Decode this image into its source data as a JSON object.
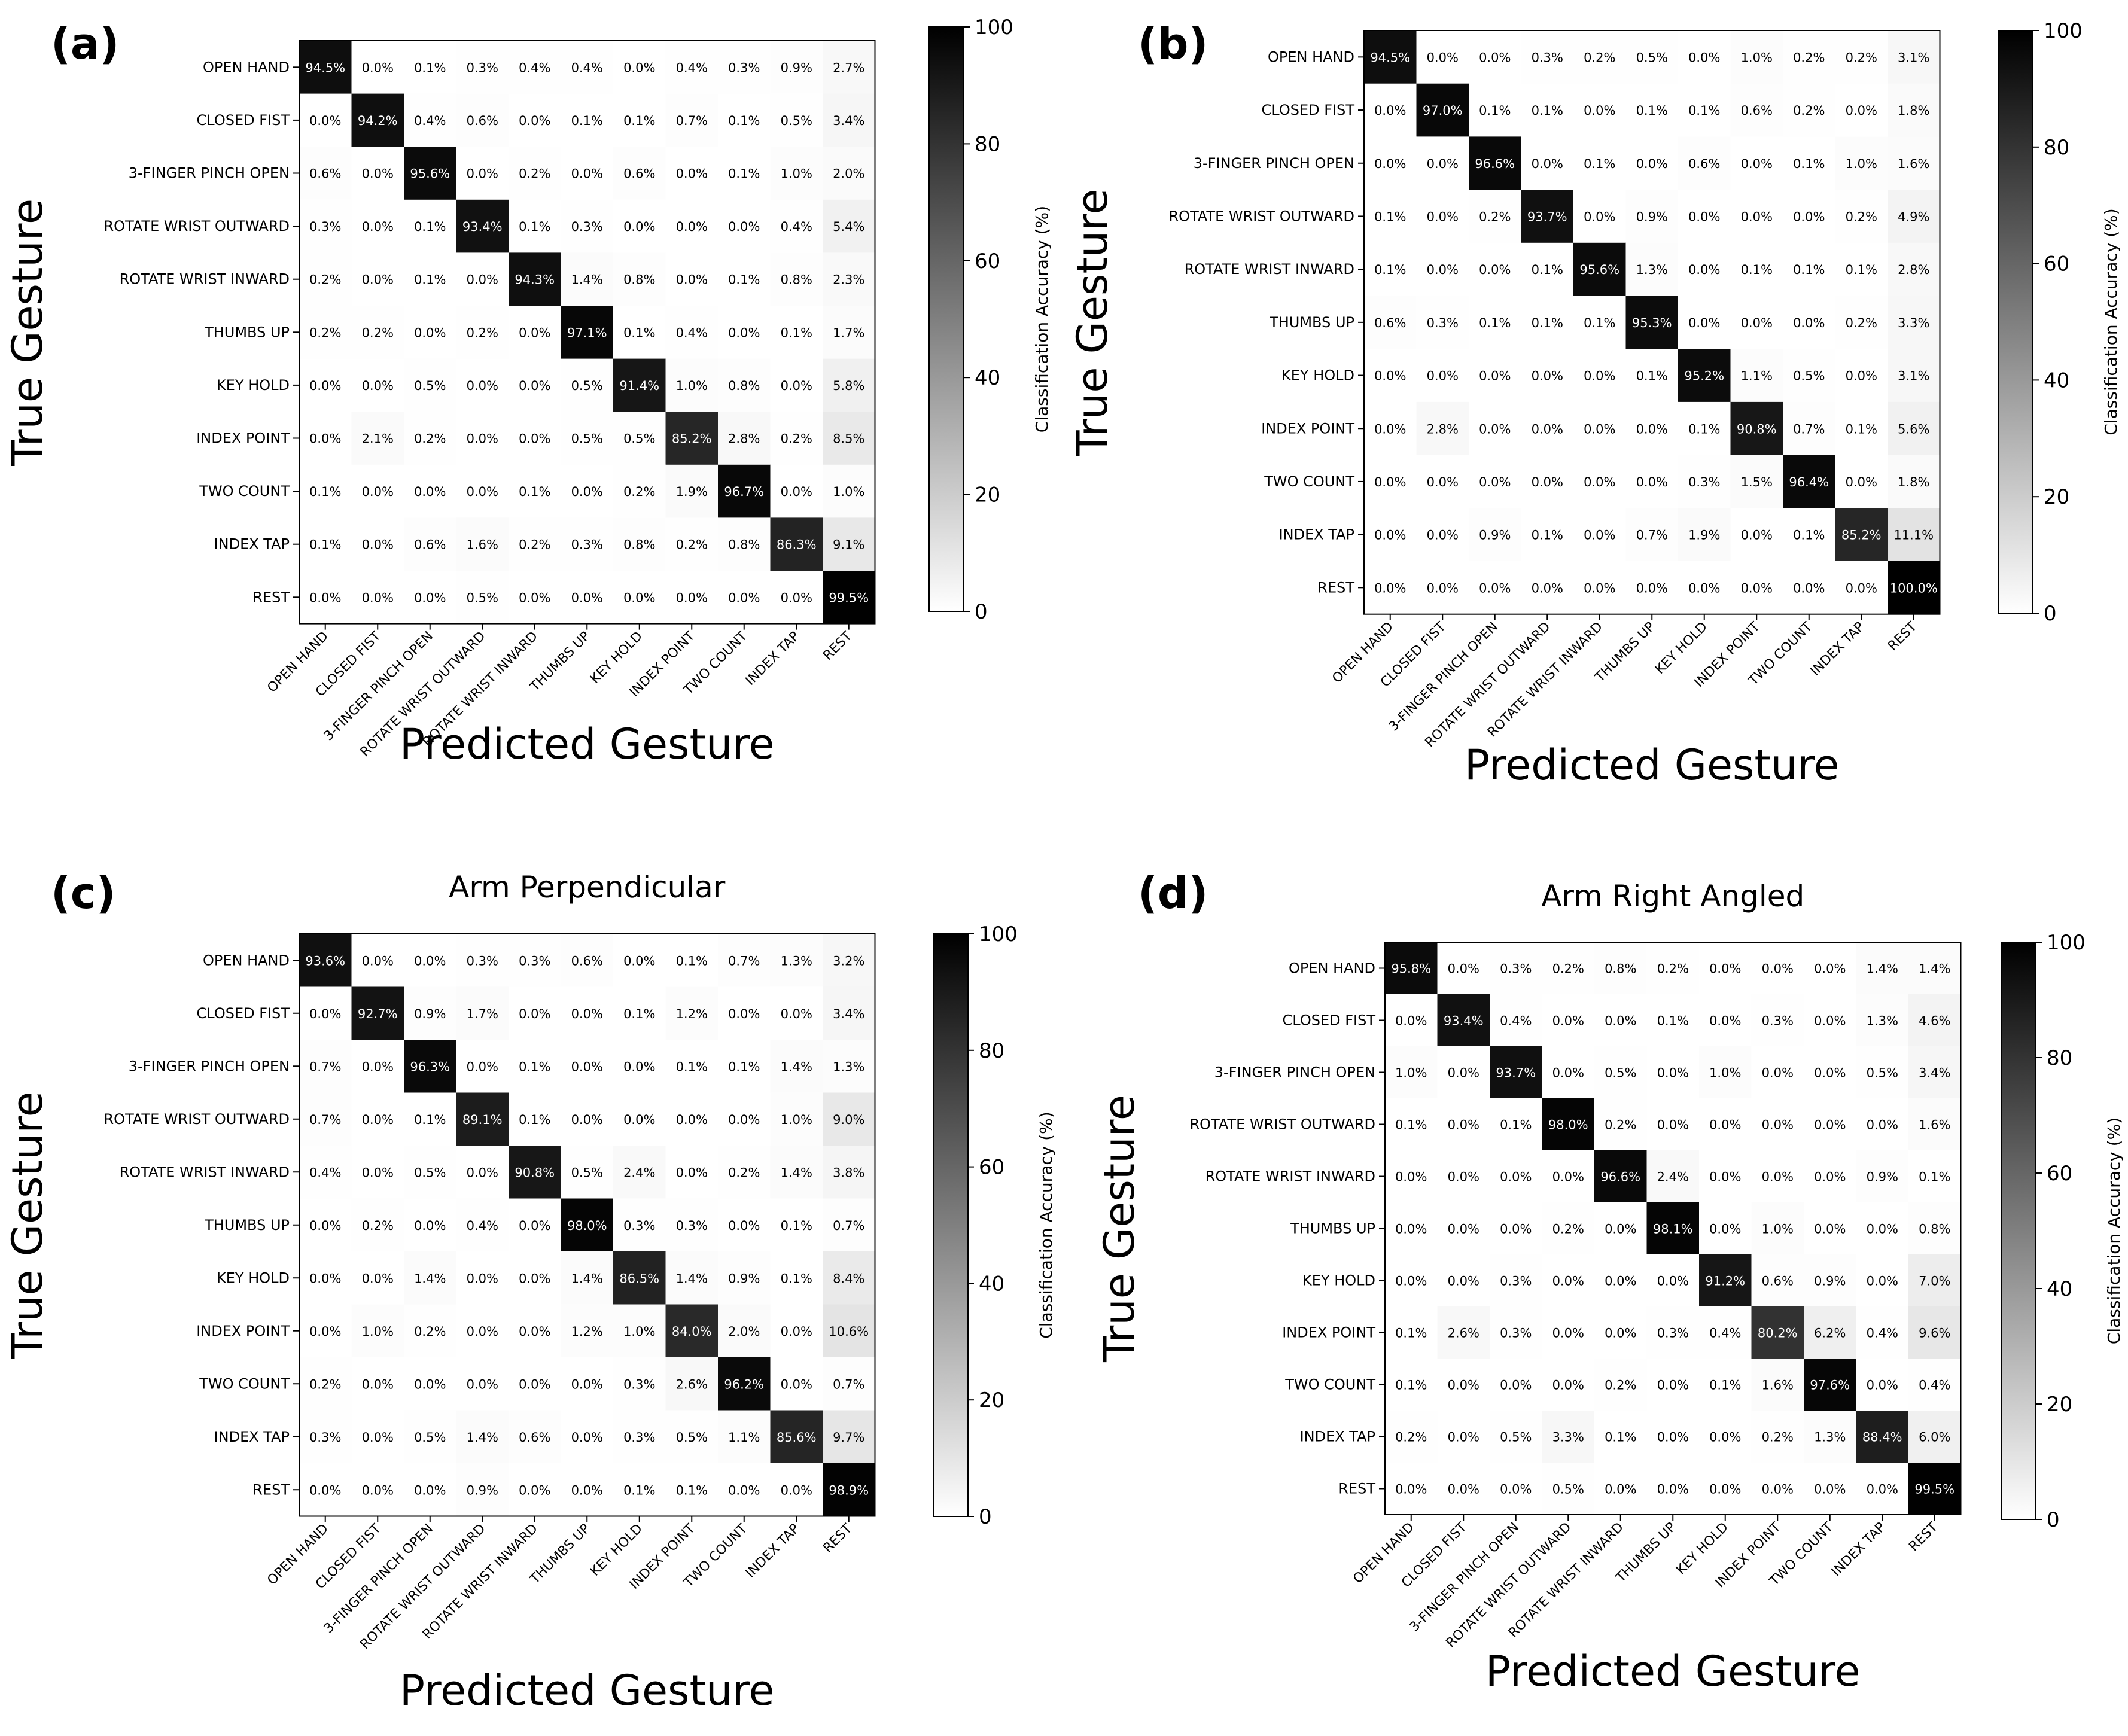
{
  "figure": {
    "shared": {
      "categories": [
        "OPEN HAND",
        "CLOSED FIST",
        "3-FINGER PINCH OPEN",
        "ROTATE WRIST OUTWARD",
        "ROTATE WRIST INWARD",
        "THUMBS UP",
        "KEY HOLD",
        "INDEX POINT",
        "TWO COUNT",
        "INDEX TAP",
        "REST"
      ],
      "xlabel": "Predicted Gesture",
      "ylabel": "True Gesture",
      "colorbar_label": "Classification Accuracy (%)",
      "colorbar_ticks": [
        "0",
        "20",
        "40",
        "60",
        "80",
        "100"
      ],
      "colormap": {
        "low": "#ffffff",
        "high": "#000000"
      }
    }
  },
  "chart_data": [
    {
      "type": "heatmap",
      "panel_label": "(a)",
      "title": "",
      "xlabel": "Predicted Gesture",
      "ylabel": "True Gesture",
      "zlabel": "Classification Accuracy (%)",
      "zlim": [
        0,
        100
      ],
      "categories": [
        "OPEN HAND",
        "CLOSED FIST",
        "3-FINGER PINCH OPEN",
        "ROTATE WRIST OUTWARD",
        "ROTATE WRIST INWARD",
        "THUMBS UP",
        "KEY HOLD",
        "INDEX POINT",
        "TWO COUNT",
        "INDEX TAP",
        "REST"
      ],
      "values": [
        [
          94.5,
          0.0,
          0.1,
          0.3,
          0.4,
          0.4,
          0.0,
          0.4,
          0.3,
          0.9,
          2.7
        ],
        [
          0.0,
          94.2,
          0.4,
          0.6,
          0.0,
          0.1,
          0.1,
          0.7,
          0.1,
          0.5,
          3.4
        ],
        [
          0.6,
          0.0,
          95.6,
          0.0,
          0.2,
          0.0,
          0.6,
          0.0,
          0.1,
          1.0,
          2.0
        ],
        [
          0.3,
          0.0,
          0.1,
          93.4,
          0.1,
          0.3,
          0.0,
          0.0,
          0.0,
          0.4,
          5.4
        ],
        [
          0.2,
          0.0,
          0.1,
          0.0,
          94.3,
          1.4,
          0.8,
          0.0,
          0.1,
          0.8,
          2.3
        ],
        [
          0.2,
          0.2,
          0.0,
          0.2,
          0.0,
          97.1,
          0.1,
          0.4,
          0.0,
          0.1,
          1.7
        ],
        [
          0.0,
          0.0,
          0.5,
          0.0,
          0.0,
          0.5,
          91.4,
          1.0,
          0.8,
          0.0,
          5.8
        ],
        [
          0.0,
          2.1,
          0.2,
          0.0,
          0.0,
          0.5,
          0.5,
          85.2,
          2.8,
          0.2,
          8.5
        ],
        [
          0.1,
          0.0,
          0.0,
          0.0,
          0.1,
          0.0,
          0.2,
          1.9,
          96.7,
          0.0,
          1.0
        ],
        [
          0.1,
          0.0,
          0.6,
          1.6,
          0.2,
          0.3,
          0.8,
          0.2,
          0.8,
          86.3,
          9.1
        ],
        [
          0.0,
          0.0,
          0.0,
          0.5,
          0.0,
          0.0,
          0.0,
          0.0,
          0.0,
          0.0,
          99.5
        ]
      ]
    },
    {
      "type": "heatmap",
      "panel_label": "(b)",
      "title": "",
      "xlabel": "Predicted Gesture",
      "ylabel": "True Gesture",
      "zlabel": "Classification Accuracy (%)",
      "zlim": [
        0,
        100
      ],
      "categories": [
        "OPEN HAND",
        "CLOSED FIST",
        "3-FINGER PINCH OPEN",
        "ROTATE WRIST OUTWARD",
        "ROTATE WRIST INWARD",
        "THUMBS UP",
        "KEY HOLD",
        "INDEX POINT",
        "TWO COUNT",
        "INDEX TAP",
        "REST"
      ],
      "values": [
        [
          94.5,
          0.0,
          0.0,
          0.3,
          0.2,
          0.5,
          0.0,
          1.0,
          0.2,
          0.2,
          3.1
        ],
        [
          0.0,
          97.0,
          0.1,
          0.1,
          0.0,
          0.1,
          0.1,
          0.6,
          0.2,
          0.0,
          1.8
        ],
        [
          0.0,
          0.0,
          96.6,
          0.0,
          0.1,
          0.0,
          0.6,
          0.0,
          0.1,
          1.0,
          1.6
        ],
        [
          0.1,
          0.0,
          0.2,
          93.7,
          0.0,
          0.9,
          0.0,
          0.0,
          0.0,
          0.2,
          4.9
        ],
        [
          0.1,
          0.0,
          0.0,
          0.1,
          95.6,
          1.3,
          0.0,
          0.1,
          0.1,
          0.1,
          2.8
        ],
        [
          0.6,
          0.3,
          0.1,
          0.1,
          0.1,
          95.3,
          0.0,
          0.0,
          0.0,
          0.2,
          3.3
        ],
        [
          0.0,
          0.0,
          0.0,
          0.0,
          0.0,
          0.1,
          95.2,
          1.1,
          0.5,
          0.0,
          3.1
        ],
        [
          0.0,
          2.8,
          0.0,
          0.0,
          0.0,
          0.0,
          0.1,
          90.8,
          0.7,
          0.1,
          5.6
        ],
        [
          0.0,
          0.0,
          0.0,
          0.0,
          0.0,
          0.0,
          0.3,
          1.5,
          96.4,
          0.0,
          1.8
        ],
        [
          0.0,
          0.0,
          0.9,
          0.1,
          0.0,
          0.7,
          1.9,
          0.0,
          0.1,
          85.2,
          11.1
        ],
        [
          0.0,
          0.0,
          0.0,
          0.0,
          0.0,
          0.0,
          0.0,
          0.0,
          0.0,
          0.0,
          100.0
        ]
      ]
    },
    {
      "type": "heatmap",
      "panel_label": "(c)",
      "title": "Arm Perpendicular",
      "xlabel": "Predicted Gesture",
      "ylabel": "True Gesture",
      "zlabel": "Classification Accuracy (%)",
      "zlim": [
        0,
        100
      ],
      "categories": [
        "OPEN HAND",
        "CLOSED FIST",
        "3-FINGER PINCH OPEN",
        "ROTATE WRIST OUTWARD",
        "ROTATE WRIST INWARD",
        "THUMBS UP",
        "KEY HOLD",
        "INDEX POINT",
        "TWO COUNT",
        "INDEX TAP",
        "REST"
      ],
      "values": [
        [
          93.6,
          0.0,
          0.0,
          0.3,
          0.3,
          0.6,
          0.0,
          0.1,
          0.7,
          1.3,
          3.2
        ],
        [
          0.0,
          92.7,
          0.9,
          1.7,
          0.0,
          0.0,
          0.1,
          1.2,
          0.0,
          0.0,
          3.4
        ],
        [
          0.7,
          0.0,
          96.3,
          0.0,
          0.1,
          0.0,
          0.0,
          0.1,
          0.1,
          1.4,
          1.3
        ],
        [
          0.7,
          0.0,
          0.1,
          89.1,
          0.1,
          0.0,
          0.0,
          0.0,
          0.0,
          1.0,
          9.0
        ],
        [
          0.4,
          0.0,
          0.5,
          0.0,
          90.8,
          0.5,
          2.4,
          0.0,
          0.2,
          1.4,
          3.8
        ],
        [
          0.0,
          0.2,
          0.0,
          0.4,
          0.0,
          98.0,
          0.3,
          0.3,
          0.0,
          0.1,
          0.7
        ],
        [
          0.0,
          0.0,
          1.4,
          0.0,
          0.0,
          1.4,
          86.5,
          1.4,
          0.9,
          0.1,
          8.4
        ],
        [
          0.0,
          1.0,
          0.2,
          0.0,
          0.0,
          1.2,
          1.0,
          84.0,
          2.0,
          0.0,
          10.6
        ],
        [
          0.2,
          0.0,
          0.0,
          0.0,
          0.0,
          0.0,
          0.3,
          2.6,
          96.2,
          0.0,
          0.7
        ],
        [
          0.3,
          0.0,
          0.5,
          1.4,
          0.6,
          0.0,
          0.3,
          0.5,
          1.1,
          85.6,
          9.7
        ],
        [
          0.0,
          0.0,
          0.0,
          0.9,
          0.0,
          0.0,
          0.1,
          0.1,
          0.0,
          0.0,
          98.9
        ]
      ]
    },
    {
      "type": "heatmap",
      "panel_label": "(d)",
      "title": "Arm Right Angled",
      "xlabel": "Predicted Gesture",
      "ylabel": "True Gesture",
      "zlabel": "Classification Accuracy (%)",
      "zlim": [
        0,
        100
      ],
      "categories": [
        "OPEN HAND",
        "CLOSED FIST",
        "3-FINGER PINCH OPEN",
        "ROTATE WRIST OUTWARD",
        "ROTATE WRIST INWARD",
        "THUMBS UP",
        "KEY HOLD",
        "INDEX POINT",
        "TWO COUNT",
        "INDEX TAP",
        "REST"
      ],
      "values": [
        [
          95.8,
          0.0,
          0.3,
          0.2,
          0.8,
          0.2,
          0.0,
          0.0,
          0.0,
          1.4,
          1.4
        ],
        [
          0.0,
          93.4,
          0.4,
          0.0,
          0.0,
          0.1,
          0.0,
          0.3,
          0.0,
          1.3,
          4.6
        ],
        [
          1.0,
          0.0,
          93.7,
          0.0,
          0.5,
          0.0,
          1.0,
          0.0,
          0.0,
          0.5,
          3.4
        ],
        [
          0.1,
          0.0,
          0.1,
          98.0,
          0.2,
          0.0,
          0.0,
          0.0,
          0.0,
          0.0,
          1.6
        ],
        [
          0.0,
          0.0,
          0.0,
          0.0,
          96.6,
          2.4,
          0.0,
          0.0,
          0.0,
          0.9,
          0.1
        ],
        [
          0.0,
          0.0,
          0.0,
          0.2,
          0.0,
          98.1,
          0.0,
          1.0,
          0.0,
          0.0,
          0.8
        ],
        [
          0.0,
          0.0,
          0.3,
          0.0,
          0.0,
          0.0,
          91.2,
          0.6,
          0.9,
          0.0,
          7.0
        ],
        [
          0.1,
          2.6,
          0.3,
          0.0,
          0.0,
          0.3,
          0.4,
          80.2,
          6.2,
          0.4,
          9.6
        ],
        [
          0.1,
          0.0,
          0.0,
          0.0,
          0.2,
          0.0,
          0.1,
          1.6,
          97.6,
          0.0,
          0.4
        ],
        [
          0.2,
          0.0,
          0.5,
          3.3,
          0.1,
          0.0,
          0.0,
          0.2,
          1.3,
          88.4,
          6.0
        ],
        [
          0.0,
          0.0,
          0.0,
          0.5,
          0.0,
          0.0,
          0.0,
          0.0,
          0.0,
          0.0,
          99.5
        ]
      ]
    }
  ]
}
